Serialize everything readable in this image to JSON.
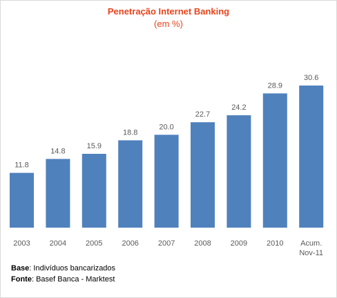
{
  "chart_data": {
    "type": "bar",
    "title": "Penetração Internet Banking",
    "subtitle": "(em %)",
    "categories": [
      "2003",
      "2004",
      "2005",
      "2006",
      "2007",
      "2008",
      "2009",
      "2010",
      "Acum. Nov-11"
    ],
    "category_lines": [
      [
        "2003"
      ],
      [
        "2004"
      ],
      [
        "2005"
      ],
      [
        "2006"
      ],
      [
        "2007"
      ],
      [
        "2008"
      ],
      [
        "2009"
      ],
      [
        "2010"
      ],
      [
        "Acum.",
        "Nov-11"
      ]
    ],
    "values": [
      11.8,
      14.8,
      15.9,
      18.8,
      20.0,
      22.7,
      24.2,
      28.9,
      30.6
    ],
    "value_labels": [
      "11.8",
      "14.8",
      "15.9",
      "18.8",
      "20.0",
      "22.7",
      "24.2",
      "28.9",
      "30.6"
    ],
    "ylim": [
      0,
      32
    ],
    "xlabel": "",
    "ylabel": "",
    "grid": false,
    "bar_color": "#4f81bd",
    "title_color": "#e8431b"
  },
  "footnotes": {
    "base_label": "Base",
    "base_text": ": Indivíduos bancarizados",
    "source_label": "Fonte",
    "source_text": ": Basef Banca - Marktest"
  }
}
